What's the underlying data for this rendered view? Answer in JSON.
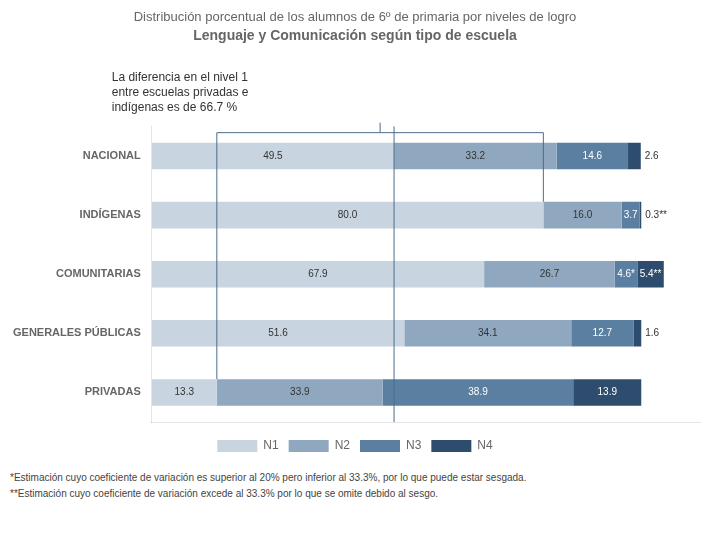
{
  "chart_data": {
    "type": "bar",
    "orientation": "horizontal",
    "stacked": true,
    "title": "Distribución porcentual de los alumnos de 6º de primaria por niveles de logro",
    "subtitle": "Lenguaje y Comunicación según tipo de escuela",
    "categories": [
      "NACIONAL",
      "INDÍGENAS",
      "COMUNITARIAS",
      "GENERALES PÚBLICAS",
      "PRIVADAS"
    ],
    "series": [
      {
        "name": "N1",
        "color": "#c8d4e0",
        "values": [
          49.5,
          80.0,
          67.9,
          51.6,
          13.3
        ],
        "value_labels": [
          "49.5",
          "80.0",
          "67.9",
          "51.6",
          "13.3"
        ]
      },
      {
        "name": "N2",
        "color": "#8fa8bf",
        "values": [
          33.2,
          16.0,
          26.7,
          34.1,
          33.9
        ],
        "value_labels": [
          "33.2",
          "16.0",
          "26.7",
          "34.1",
          "33.9"
        ]
      },
      {
        "name": "N3",
        "color": "#5b7fa0",
        "values": [
          14.6,
          3.7,
          4.6,
          12.7,
          38.9
        ],
        "value_labels": [
          "14.6",
          "3.7",
          "4.6*",
          "12.7",
          "38.9"
        ]
      },
      {
        "name": "N4",
        "color": "#2e4d6e",
        "values": [
          2.6,
          0.3,
          5.4,
          1.6,
          13.9
        ],
        "value_labels": [
          "2.6",
          "0.3**",
          "5.4**",
          "1.6",
          "13.9"
        ]
      }
    ],
    "xlim": [
      0,
      112
    ],
    "tick_labels": "y",
    "grid": false,
    "legend": "bottom",
    "data_labels": true,
    "annotation": "La diferencia en el nivel 1\nentre escuelas privadas e\nindígenas es de 66.7 %",
    "reference_line": {
      "value": 49.5,
      "color": "#4a6d8c"
    },
    "bracket": {
      "from": {
        "category": "PRIVADAS",
        "value": 13.3
      },
      "to": {
        "category": "INDÍGENAS",
        "value": 80.0
      },
      "color": "#4a6d8c"
    },
    "footnotes": [
      "*Estimación cuyo coeficiente de variación es superior al 20% pero inferior al 33.3%, por lo que puede estar sesgada.",
      "**Estimación cuyo coeficiente de variación excede al 33.3% por lo que se omite debido al sesgo."
    ]
  }
}
